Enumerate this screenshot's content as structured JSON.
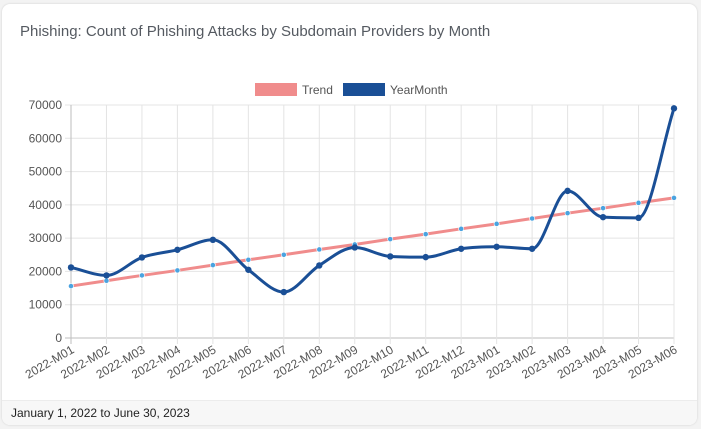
{
  "card": {
    "title": "Phishing: Count of Phishing Attacks by Subdomain Providers by Month",
    "date_range": "January 1, 2022 to June 30, 2023"
  },
  "chart_data": {
    "type": "line",
    "title": "Phishing: Count of Phishing Attacks by Subdomain Providers by Month",
    "xlabel": "",
    "ylabel": "",
    "ylim": [
      0,
      70000
    ],
    "y_ticks": [
      0,
      10000,
      20000,
      30000,
      40000,
      50000,
      60000,
      70000
    ],
    "grid": true,
    "legend_position": "top",
    "categories": [
      "2022-M01",
      "2022-M02",
      "2022-M03",
      "2022-M04",
      "2022-M05",
      "2022-M06",
      "2022-M07",
      "2022-M08",
      "2022-M09",
      "2022-M10",
      "2022-M11",
      "2022-M12",
      "2023-M01",
      "2023-M02",
      "2023-M03",
      "2023-M04",
      "2023-M05",
      "2023-M06"
    ],
    "series": [
      {
        "name": "Trend",
        "color": "#f08c8c",
        "point_color": "#4aa3e0",
        "values": [
          15600,
          17200,
          18800,
          20300,
          21900,
          23500,
          25000,
          26600,
          28100,
          29700,
          31200,
          32800,
          34300,
          35900,
          37500,
          39000,
          40600,
          42100
        ]
      },
      {
        "name": "YearMonth",
        "color": "#1a4f96",
        "point_color": "#1a4f96",
        "values": [
          21200,
          18800,
          24200,
          26500,
          29500,
          20500,
          13800,
          21800,
          27200,
          24500,
          24300,
          26800,
          27400,
          26800,
          44200,
          36300,
          36100,
          69000
        ]
      }
    ]
  }
}
